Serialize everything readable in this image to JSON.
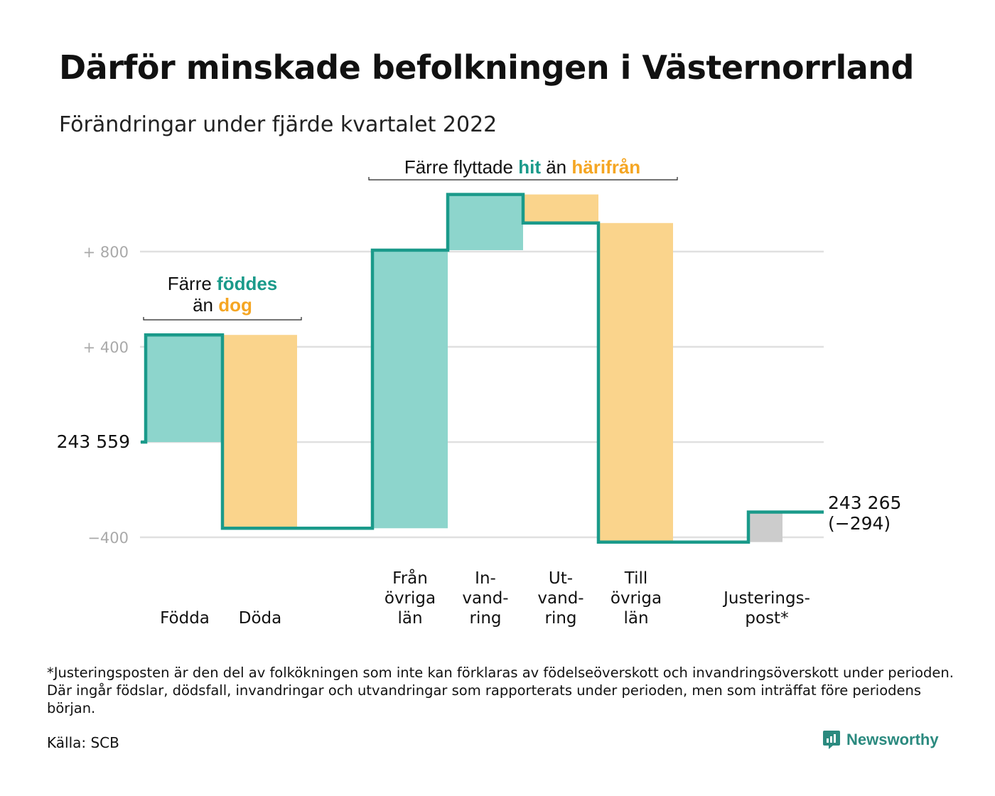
{
  "title": "Därför minskade befolkningen i Västernorrland",
  "subtitle": "Förändringar under fjärde kvartalet 2022",
  "chart_data": {
    "type": "waterfall",
    "start": {
      "label": "243 559",
      "value": 243559
    },
    "end": {
      "label_line1": "243 265",
      "label_line2": "(−294)",
      "value": 243265,
      "change": -294
    },
    "ylim": [
      -420,
      1260
    ],
    "gridlines": [
      {
        "value": 800,
        "label": "+ 800"
      },
      {
        "value": 400,
        "label": "+ 400"
      },
      {
        "value": 0,
        "label": ""
      },
      {
        "value": -400,
        "label": "−400"
      }
    ],
    "colors": {
      "line": "#1a9a8a",
      "inflow": "#8dd5cc",
      "outflow": "#fad48c",
      "adjustment": "#cccccc",
      "grid": "#e0e0e0"
    },
    "categories": [
      {
        "name": "Födda",
        "label_lines": [
          "Födda"
        ],
        "bar_from": 0,
        "bar_to": 450,
        "kind": "inflow"
      },
      {
        "name": "Döda",
        "label_lines": [
          "Döda"
        ],
        "bar_from": 450,
        "bar_to": -362,
        "kind": "outflow"
      },
      {
        "name": "Från övriga län",
        "label_lines": [
          "Från",
          "övriga",
          "län"
        ],
        "bar_from": -362,
        "bar_to": 806,
        "kind": "inflow"
      },
      {
        "name": "Invandring",
        "label_lines": [
          "In-",
          "vand-",
          "ring"
        ],
        "bar_from": 806,
        "bar_to": 1040,
        "kind": "inflow"
      },
      {
        "name": "Utvandring",
        "label_lines": [
          "Ut-",
          "vand-",
          "ring"
        ],
        "bar_from": 1040,
        "bar_to": 920,
        "kind": "outflow"
      },
      {
        "name": "Till övriga län",
        "label_lines": [
          "Till",
          "övriga",
          "län"
        ],
        "bar_from": 920,
        "bar_to": -420,
        "kind": "outflow"
      },
      {
        "name": "Justeringspost*",
        "label_lines": [
          "Justerings-",
          "post*"
        ],
        "bar_from": -420,
        "bar_to": -294,
        "kind": "adjustment"
      }
    ],
    "annotations": [
      {
        "lines": [
          [
            {
              "text": "Färre ",
              "style": "plain"
            },
            {
              "text": "föddes",
              "style": "teal"
            }
          ],
          [
            {
              "text": "än ",
              "style": "plain"
            },
            {
              "text": "dog",
              "style": "orange"
            }
          ]
        ]
      },
      {
        "lines": [
          [
            {
              "text": "Färre flyttade ",
              "style": "plain"
            },
            {
              "text": "hit",
              "style": "teal"
            },
            {
              "text": " än ",
              "style": "plain"
            },
            {
              "text": "härifrån",
              "style": "orange"
            }
          ]
        ]
      }
    ]
  },
  "footnote": "*Justeringsposten är den del av folkökningen som inte kan förklaras av födelseöverskott och invandringsöverskott under perioden. Där ingår födslar, dödsfall, invandringar och utvandringar som rapporterats under perioden, men som inträffat före periodens början.",
  "source": "Källa: SCB",
  "brand": {
    "name": "Newsworthy",
    "icon": "newsworthy-logo-icon"
  }
}
